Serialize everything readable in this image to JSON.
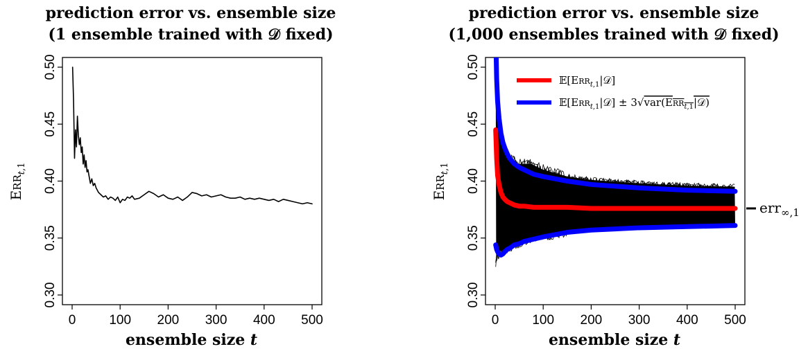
{
  "chart_data": [
    {
      "type": "line",
      "title": [
        "prediction error vs. ensemble size",
        "(1 ensemble trained with 𝒟 fixed)"
      ],
      "xlabel": "ensemble size t",
      "ylabel": "Err_{t,1}",
      "xlim": [
        0,
        500
      ],
      "ylim": [
        0.3,
        0.5
      ],
      "xticks": [
        "0",
        "100",
        "200",
        "300",
        "400",
        "500"
      ],
      "yticks": [
        "0.30",
        "0.35",
        "0.40",
        "0.45",
        "0.50"
      ],
      "series": [
        {
          "color": "#000000",
          "x": [
            1,
            3,
            5,
            7,
            9,
            11,
            13,
            15,
            17,
            19,
            21,
            23,
            25,
            27,
            29,
            31,
            33,
            35,
            38,
            41,
            44,
            47,
            50,
            55,
            60,
            65,
            70,
            75,
            80,
            85,
            90,
            95,
            100,
            105,
            110,
            115,
            120,
            125,
            130,
            140,
            150,
            160,
            170,
            180,
            190,
            200,
            210,
            220,
            230,
            240,
            250,
            260,
            270,
            280,
            290,
            300,
            310,
            320,
            330,
            340,
            350,
            360,
            370,
            380,
            390,
            400,
            410,
            420,
            430,
            440,
            450,
            460,
            470,
            480,
            490,
            500
          ],
          "y": [
            0.5,
            0.47,
            0.42,
            0.445,
            0.43,
            0.457,
            0.44,
            0.432,
            0.438,
            0.425,
            0.43,
            0.415,
            0.423,
            0.412,
            0.418,
            0.408,
            0.41,
            0.405,
            0.398,
            0.402,
            0.396,
            0.398,
            0.394,
            0.39,
            0.388,
            0.386,
            0.387,
            0.384,
            0.386,
            0.385,
            0.383,
            0.386,
            0.381,
            0.384,
            0.383,
            0.386,
            0.385,
            0.387,
            0.384,
            0.385,
            0.388,
            0.391,
            0.389,
            0.386,
            0.388,
            0.385,
            0.384,
            0.386,
            0.383,
            0.386,
            0.39,
            0.389,
            0.387,
            0.388,
            0.386,
            0.387,
            0.388,
            0.386,
            0.385,
            0.385,
            0.386,
            0.384,
            0.385,
            0.384,
            0.385,
            0.384,
            0.383,
            0.384,
            0.382,
            0.384,
            0.383,
            0.382,
            0.381,
            0.38,
            0.381,
            0.38
          ]
        }
      ]
    },
    {
      "type": "line",
      "title": [
        "prediction error vs. ensemble size",
        "(1,000 ensembles trained with 𝒟 fixed)"
      ],
      "xlabel": "ensemble size t",
      "ylabel": "Err_{t,1}",
      "xlim": [
        0,
        500
      ],
      "ylim": [
        0.3,
        0.5
      ],
      "xticks": [
        "0",
        "100",
        "200",
        "300",
        "400",
        "500"
      ],
      "yticks": [
        "0.30",
        "0.35",
        "0.40",
        "0.45",
        "0.50"
      ],
      "legend": [
        "E[Err_{t,1}|D]",
        "E[Err_{t,1}|D] ± 3√var(Err_{t,1}|D)"
      ],
      "legend_position": "top-right",
      "annotation": "err_{∞,1}",
      "annotation_y": 0.376,
      "band": {
        "color": "#000000",
        "x": [
          1,
          5,
          10,
          20,
          30,
          50,
          75,
          100,
          150,
          200,
          300,
          400,
          500
        ],
        "upper": [
          0.505,
          0.47,
          0.45,
          0.43,
          0.42,
          0.415,
          0.415,
          0.41,
          0.404,
          0.401,
          0.398,
          0.396,
          0.395
        ],
        "lower": [
          0.328,
          0.335,
          0.338,
          0.34,
          0.342,
          0.346,
          0.35,
          0.352,
          0.356,
          0.358,
          0.36,
          0.361,
          0.362
        ]
      },
      "series": [
        {
          "name": "E[Err_{t,1}|D]",
          "color": "#ff0000",
          "x": [
            1,
            3,
            5,
            8,
            12,
            16,
            20,
            25,
            30,
            40,
            50,
            60,
            80,
            100,
            150,
            200,
            300,
            400,
            500
          ],
          "y": [
            0.445,
            0.42,
            0.405,
            0.397,
            0.39,
            0.386,
            0.384,
            0.382,
            0.381,
            0.379,
            0.378,
            0.378,
            0.377,
            0.377,
            0.377,
            0.376,
            0.376,
            0.376,
            0.376
          ]
        },
        {
          "name": "E[Err_{t,1}|D] ± 3√var(Err_{t,1}|D)",
          "color": "#0000ff",
          "x": [
            1,
            3,
            5,
            8,
            12,
            16,
            20,
            25,
            30,
            40,
            50,
            60,
            80,
            100,
            150,
            200,
            300,
            400,
            500
          ],
          "y": [
            0.53,
            0.49,
            0.47,
            0.455,
            0.442,
            0.434,
            0.429,
            0.424,
            0.42,
            0.415,
            0.412,
            0.41,
            0.406,
            0.404,
            0.4,
            0.397,
            0.394,
            0.392,
            0.391
          ]
        },
        {
          "name": "E[Err_{t,1}|D] ± 3√var(Err_{t,1}|D)",
          "color": "#0000ff",
          "x": [
            1,
            3,
            5,
            8,
            12,
            16,
            20,
            25,
            30,
            40,
            50,
            60,
            80,
            100,
            150,
            200,
            300,
            400,
            500
          ],
          "y": [
            0.344,
            0.34,
            0.338,
            0.336,
            0.335,
            0.336,
            0.338,
            0.34,
            0.341,
            0.344,
            0.345,
            0.347,
            0.349,
            0.351,
            0.355,
            0.357,
            0.359,
            0.36,
            0.361
          ]
        }
      ]
    }
  ]
}
